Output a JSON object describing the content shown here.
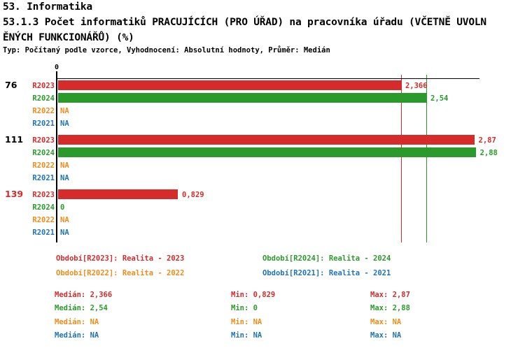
{
  "header": {
    "line1": "53. Informatika",
    "line2": "53.1.3 Počet informatiků PRACUJÍCÍCH (PRO ÚŘAD) na pracovníka úřadu (VČETNĚ UVOLN",
    "line3": "ĚNÝCH FUNKCIONÁŘŮ) (%)",
    "meta": "Typ: Počítaný podle vzorce, Vyhodnocení: Absolutní hodnoty, Průměr: Medián"
  },
  "colors": {
    "red": "#d62b2b",
    "green": "#2a9b2a",
    "orange": "#ef8c1a",
    "blue": "#1f74b4",
    "black": "#000000",
    "background": "#ffffff"
  },
  "chart_data": {
    "type": "bar",
    "orientation": "horizontal",
    "x_zero_label": "0",
    "xlim": [
      0,
      2.9
    ],
    "grid": false,
    "periods": [
      "R2023",
      "R2024",
      "R2022",
      "R2021"
    ],
    "period_colors": {
      "R2023": "red",
      "R2024": "green",
      "R2022": "orange",
      "R2021": "blue"
    },
    "groups": [
      {
        "label": "76",
        "label_color": "black",
        "rows": [
          {
            "period": "R2023",
            "value": 2.366,
            "display": "2,366",
            "color": "red"
          },
          {
            "period": "R2024",
            "value": 2.54,
            "display": "2,54",
            "color": "green"
          },
          {
            "period": "R2022",
            "value": null,
            "display": "NA",
            "color": "orange"
          },
          {
            "period": "R2021",
            "value": null,
            "display": "NA",
            "color": "blue"
          }
        ]
      },
      {
        "label": "111",
        "label_color": "black",
        "rows": [
          {
            "period": "R2023",
            "value": 2.87,
            "display": "2,87",
            "color": "red"
          },
          {
            "period": "R2024",
            "value": 2.88,
            "display": "2,88",
            "color": "green"
          },
          {
            "period": "R2022",
            "value": null,
            "display": "NA",
            "color": "orange"
          },
          {
            "period": "R2021",
            "value": null,
            "display": "NA",
            "color": "blue"
          }
        ]
      },
      {
        "label": "139",
        "label_color": "red",
        "rows": [
          {
            "period": "R2023",
            "value": 0.829,
            "display": "0,829",
            "color": "red"
          },
          {
            "period": "R2024",
            "value": 0,
            "display": "0",
            "color": "green"
          },
          {
            "period": "R2022",
            "value": null,
            "display": "NA",
            "color": "orange"
          },
          {
            "period": "R2021",
            "value": null,
            "display": "NA",
            "color": "blue"
          }
        ]
      }
    ],
    "median_lines": [
      {
        "value": 2.366,
        "color": "red"
      },
      {
        "value": 2.54,
        "color": "green"
      }
    ]
  },
  "legend": [
    {
      "label": "Období[R2023]: Realita - 2023",
      "color": "red"
    },
    {
      "label": "Období[R2024]: Realita - 2024",
      "color": "green"
    },
    {
      "label": "Období[R2022]: Realita - 2022",
      "color": "orange"
    },
    {
      "label": "Období[R2021]: Realita - 2021",
      "color": "blue"
    }
  ],
  "stats": [
    {
      "median": "Medián: 2,366",
      "min": "Min: 0,829",
      "max": "Max: 2,87",
      "color": "red"
    },
    {
      "median": "Medián: 2,54",
      "min": "Min: 0",
      "max": "Max: 2,88",
      "color": "green"
    },
    {
      "median": "Medián: NA",
      "min": "Min: NA",
      "max": "Max: NA",
      "color": "orange"
    },
    {
      "median": "Medián: NA",
      "min": "Min: NA",
      "max": "Max: NA",
      "color": "blue"
    }
  ]
}
